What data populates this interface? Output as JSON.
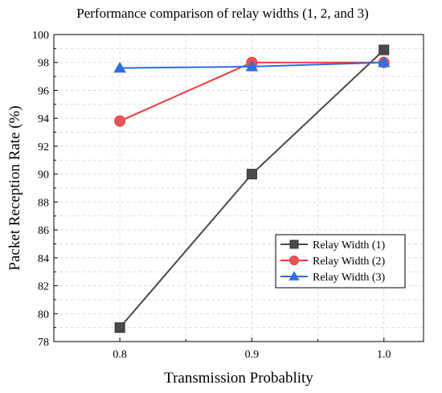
{
  "chart_data": {
    "type": "line",
    "title": "Performance comparison of relay widths (1, 2, and 3)",
    "xlabel": "Transmission Probablity",
    "ylabel": "Packet Reception Rate (%)",
    "x": [
      0.8,
      0.9,
      1.0
    ],
    "x_tick_labels": [
      "0.8",
      "0.9",
      "1.0"
    ],
    "xlim": [
      0.75,
      1.03
    ],
    "ylim": [
      78,
      100
    ],
    "y_ticks": [
      78,
      80,
      82,
      84,
      86,
      88,
      90,
      92,
      94,
      96,
      98,
      100
    ],
    "grid": true,
    "legend_position": "bottom-right",
    "series": [
      {
        "name": "Relay Width (1)",
        "values": [
          79.0,
          90.0,
          98.9
        ],
        "color": "#4a4a4a",
        "marker": "square"
      },
      {
        "name": "Relay Width (2)",
        "values": [
          93.8,
          98.0,
          98.0
        ],
        "color": "#ee3a3a",
        "marker_fill": "#e05555",
        "marker": "circle"
      },
      {
        "name": "Relay Width (3)",
        "values": [
          97.6,
          97.7,
          98.0
        ],
        "color": "#2a6fd6",
        "marker_fill": "#2f6fe3",
        "marker": "triangle"
      }
    ]
  }
}
